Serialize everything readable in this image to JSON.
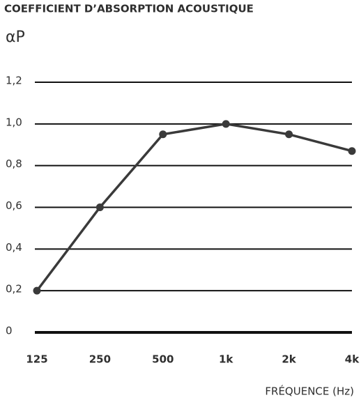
{
  "chart_data": {
    "type": "line",
    "title": "COEFFICIENT D’ABSORPTION ACOUSTIQUE",
    "ylabel": "αP",
    "xlabel": "FRÉQUENCE (Hz)",
    "categories": [
      "125",
      "250",
      "500",
      "1k",
      "2k",
      "4k"
    ],
    "series": [
      {
        "color": "#3a3a3a",
        "values": [
          0.2,
          0.6,
          0.95,
          1.0,
          0.95,
          0.87
        ]
      }
    ],
    "ylim": [
      0,
      1.2
    ],
    "yticks": [
      0,
      {
        "value": 0.2,
        "label": "0,2"
      },
      {
        "value": 0.4,
        "label": "0,4"
      },
      {
        "value": 0.6,
        "label": "0,6"
      },
      {
        "value": 0.8,
        "label": "0,8"
      },
      {
        "value": 1,
        "label": "1,0"
      },
      {
        "value": 1.2,
        "label": "1,2"
      }
    ],
    "grid": true
  }
}
